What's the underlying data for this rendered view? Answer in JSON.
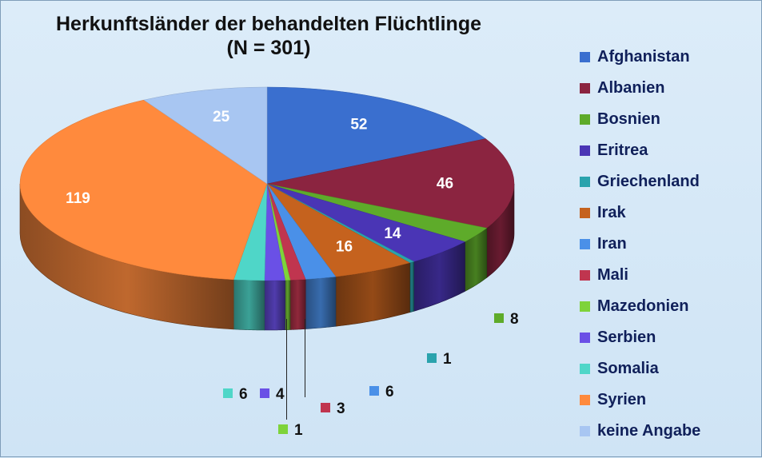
{
  "chart_data": {
    "type": "pie",
    "style": "3d",
    "title": [
      "Herkunftsländer der behandelten Flüchtlinge",
      "(N = 301)"
    ],
    "legend_position": "right",
    "slices": [
      {
        "label": "Afghanistan",
        "value": 52,
        "color": "#3a6fcf"
      },
      {
        "label": "Albanien",
        "value": 46,
        "color": "#8b2440"
      },
      {
        "label": "Bosnien",
        "value": 8,
        "color": "#5eab2a"
      },
      {
        "label": "Eritrea",
        "value": 14,
        "color": "#4a35b5"
      },
      {
        "label": "Griechenland",
        "value": 1,
        "color": "#2aa3ad"
      },
      {
        "label": "Irak",
        "value": 16,
        "color": "#c5621e"
      },
      {
        "label": "Iran",
        "value": 6,
        "color": "#4a90e8"
      },
      {
        "label": "Mali",
        "value": 3,
        "color": "#c0354f"
      },
      {
        "label": "Mazedonien",
        "value": 1,
        "color": "#7ed33a"
      },
      {
        "label": "Serbien",
        "value": 4,
        "color": "#6a50e6"
      },
      {
        "label": "Somalia",
        "value": 6,
        "color": "#4fd6c8"
      },
      {
        "label": "Syrien",
        "value": 119,
        "color": "#ff8a3d"
      },
      {
        "label": "keine Angabe",
        "value": 25,
        "color": "#a8c6f2"
      }
    ]
  }
}
